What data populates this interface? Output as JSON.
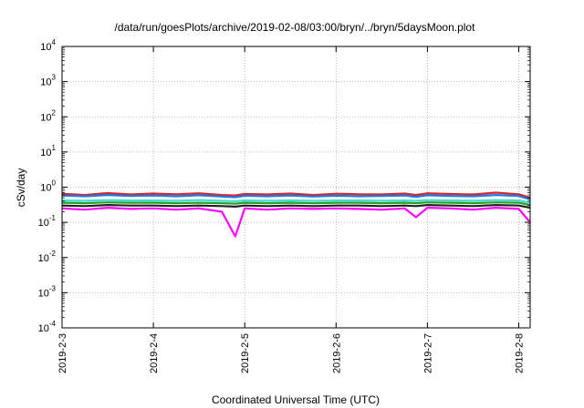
{
  "chart_data": {
    "type": "line",
    "title": "/data/run/goesPlots/archive/2019-02-08/03:00/bryn/../bryn/5daysMoon.plot",
    "xlabel": "Coordinated Universal Time (UTC)",
    "ylabel": "cSv/day",
    "yscale": "log",
    "ylim": [
      0.0001,
      10000
    ],
    "yticks": [
      {
        "value": 0.0001,
        "base": "10",
        "exp": "-4"
      },
      {
        "value": 0.001,
        "base": "10",
        "exp": "-3"
      },
      {
        "value": 0.01,
        "base": "10",
        "exp": "-2"
      },
      {
        "value": 0.1,
        "base": "10",
        "exp": "-1"
      },
      {
        "value": 1,
        "base": "10",
        "exp": "0"
      },
      {
        "value": 10,
        "base": "10",
        "exp": "1"
      },
      {
        "value": 100,
        "base": "10",
        "exp": "2"
      },
      {
        "value": 1000,
        "base": "10",
        "exp": "3"
      },
      {
        "value": 10000,
        "base": "10",
        "exp": "4"
      }
    ],
    "xlim": [
      "2019-2-3",
      "2019-2-8 03:00"
    ],
    "xticks": [
      "2019-2-3",
      "2019-2-4",
      "2019-2-5",
      "2019-2-6",
      "2019-2-7",
      "2019-2-8"
    ],
    "grid": true,
    "x": [
      "2019-2-3 00:00",
      "2019-2-3 06:00",
      "2019-2-3 12:00",
      "2019-2-3 18:00",
      "2019-2-4 00:00",
      "2019-2-4 06:00",
      "2019-2-4 12:00",
      "2019-2-4 18:00",
      "2019-2-4 21:30",
      "2019-2-5 00:00",
      "2019-2-5 06:00",
      "2019-2-5 12:00",
      "2019-2-5 18:00",
      "2019-2-6 00:00",
      "2019-2-6 06:00",
      "2019-2-6 12:00",
      "2019-2-6 18:00",
      "2019-2-6 21:00",
      "2019-2-7 00:00",
      "2019-2-7 06:00",
      "2019-2-7 12:00",
      "2019-2-7 18:00",
      "2019-2-8 00:00",
      "2019-2-8 03:00"
    ],
    "series": [
      {
        "color": "#d62728",
        "values": [
          0.65,
          0.6,
          0.68,
          0.62,
          0.66,
          0.63,
          0.67,
          0.6,
          0.58,
          0.64,
          0.62,
          0.66,
          0.6,
          0.65,
          0.63,
          0.62,
          0.66,
          0.6,
          0.67,
          0.64,
          0.62,
          0.7,
          0.63,
          0.5
        ]
      },
      {
        "color": "#1f77e4",
        "values": [
          0.58,
          0.55,
          0.6,
          0.56,
          0.58,
          0.55,
          0.59,
          0.54,
          0.52,
          0.57,
          0.55,
          0.58,
          0.54,
          0.57,
          0.55,
          0.56,
          0.58,
          0.53,
          0.59,
          0.56,
          0.55,
          0.6,
          0.56,
          0.45
        ]
      },
      {
        "color": "#40e0d0",
        "values": [
          0.42,
          0.41,
          0.43,
          0.42,
          0.42,
          0.41,
          0.43,
          0.41,
          0.4,
          0.42,
          0.41,
          0.42,
          0.41,
          0.42,
          0.42,
          0.41,
          0.42,
          0.41,
          0.43,
          0.42,
          0.41,
          0.43,
          0.42,
          0.36
        ]
      },
      {
        "color": "#2ca02c",
        "values": [
          0.36,
          0.35,
          0.37,
          0.36,
          0.36,
          0.35,
          0.36,
          0.35,
          0.34,
          0.36,
          0.35,
          0.36,
          0.35,
          0.36,
          0.36,
          0.35,
          0.36,
          0.35,
          0.37,
          0.36,
          0.35,
          0.37,
          0.36,
          0.31
        ]
      },
      {
        "color": "#222222",
        "values": [
          0.3,
          0.29,
          0.31,
          0.3,
          0.3,
          0.29,
          0.3,
          0.29,
          0.28,
          0.3,
          0.29,
          0.3,
          0.29,
          0.3,
          0.3,
          0.29,
          0.3,
          0.29,
          0.31,
          0.3,
          0.29,
          0.31,
          0.3,
          0.26
        ]
      },
      {
        "color": "#ff00ff",
        "values": [
          0.25,
          0.23,
          0.26,
          0.24,
          0.25,
          0.23,
          0.25,
          0.2,
          0.04,
          0.25,
          0.23,
          0.25,
          0.24,
          0.25,
          0.24,
          0.23,
          0.25,
          0.14,
          0.26,
          0.25,
          0.23,
          0.26,
          0.24,
          0.1
        ]
      }
    ]
  }
}
